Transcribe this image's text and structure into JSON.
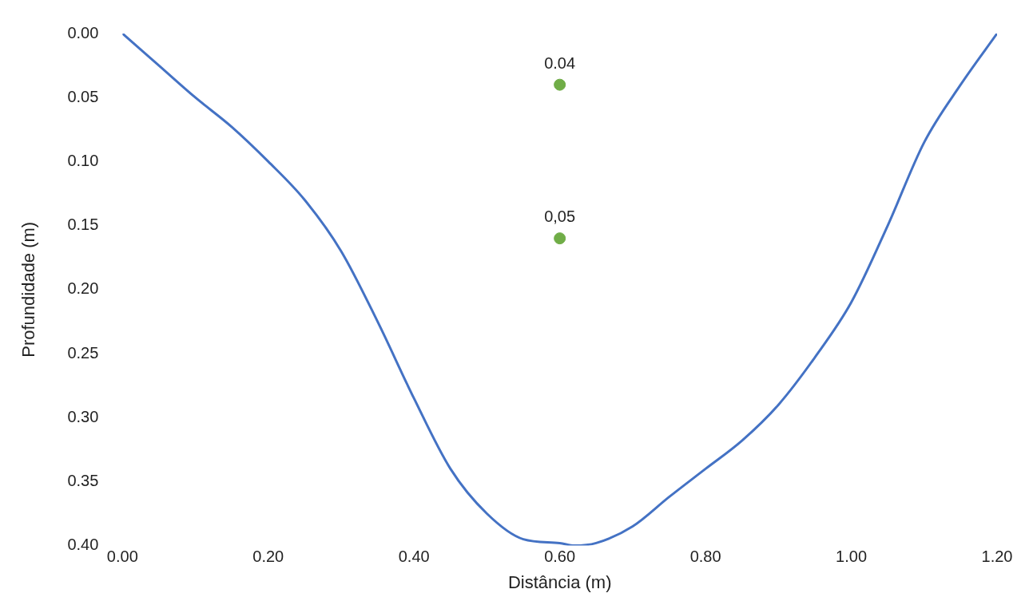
{
  "chart_data": {
    "type": "line",
    "xlabel": "Distância (m)",
    "ylabel": "Profundidade (m)",
    "xlim": [
      0,
      1.2
    ],
    "xticks": [
      {
        "value": 0,
        "label": "0.00"
      },
      {
        "value": 0.2,
        "label": "0.20"
      },
      {
        "value": 0.4,
        "label": "0.40"
      },
      {
        "value": 0.6,
        "label": "0.60"
      },
      {
        "value": 0.8,
        "label": "0.80"
      },
      {
        "value": 1,
        "label": "1.00"
      },
      {
        "value": 1.2,
        "label": "1.20"
      }
    ],
    "ylim": [
      0.4,
      0
    ],
    "yticks": [
      {
        "value": 0,
        "label": "0.00"
      },
      {
        "value": 0.05,
        "label": "0.05"
      },
      {
        "value": 0.1,
        "label": "0.10"
      },
      {
        "value": 0.15,
        "label": "0.15"
      },
      {
        "value": 0.2,
        "label": "0.20"
      },
      {
        "value": 0.25,
        "label": "0.25"
      },
      {
        "value": 0.3,
        "label": "0.30"
      },
      {
        "value": 0.35,
        "label": "0.35"
      },
      {
        "value": 0.4,
        "label": "0.40"
      }
    ],
    "grid": false,
    "legend": false,
    "series": [
      {
        "color": "#4472c4",
        "marker": "none",
        "x": [
          0,
          0.05,
          0.1,
          0.15,
          0.2,
          0.25,
          0.3,
          0.35,
          0.4,
          0.45,
          0.5,
          0.55,
          0.6,
          0.62,
          0.65,
          0.7,
          0.75,
          0.8,
          0.85,
          0.9,
          0.95,
          1,
          1.05,
          1.1,
          1.15,
          1.2
        ],
        "values": [
          0,
          0.025,
          0.05,
          0.073,
          0.1,
          0.13,
          0.17,
          0.225,
          0.285,
          0.34,
          0.375,
          0.395,
          0.398,
          0.4,
          0.398,
          0.385,
          0.362,
          0.34,
          0.318,
          0.29,
          0.253,
          0.21,
          0.15,
          0.085,
          0.04,
          0
        ]
      },
      {
        "type": "scatter",
        "color": "#70ad47",
        "marker": "circle",
        "x": [
          0.6,
          0.6
        ],
        "values": [
          0.04,
          0.16
        ]
      }
    ],
    "annotations": [
      {
        "text": "0.04",
        "x": 0.6,
        "y": 0.04
      },
      {
        "text": "0,05",
        "x": 0.6,
        "y": 0.16
      }
    ]
  }
}
